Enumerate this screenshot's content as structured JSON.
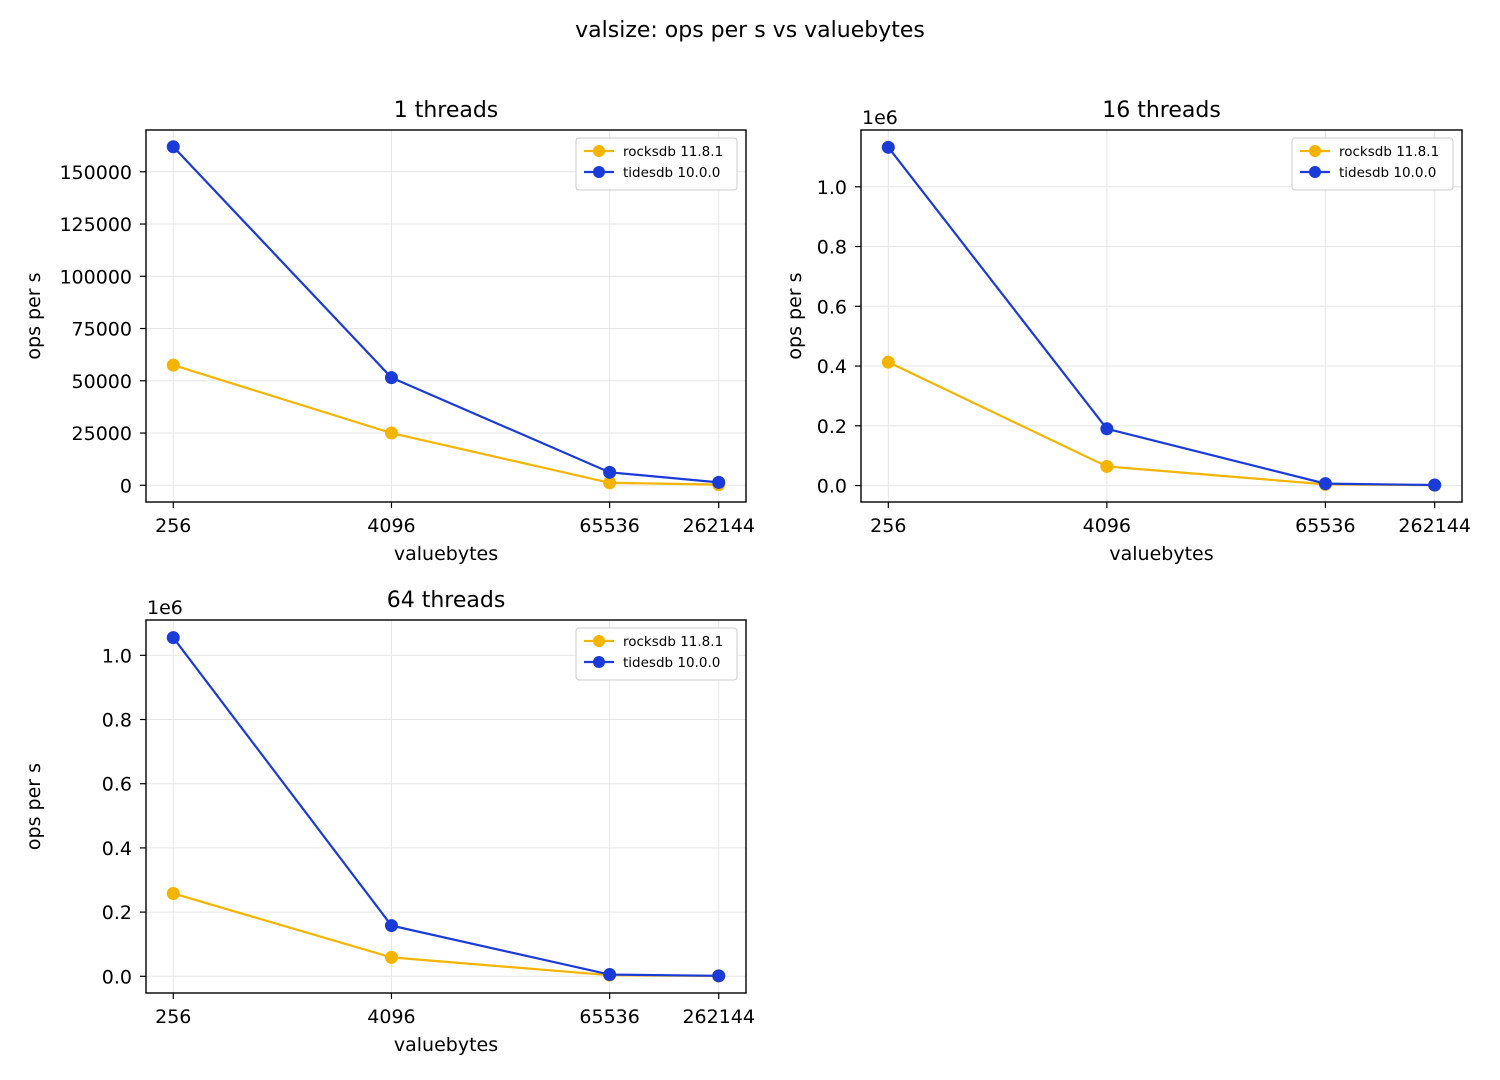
{
  "figure": {
    "suptitle": "valsize: ops per s vs valuebytes"
  },
  "chart_data": [
    {
      "type": "line",
      "title": "1 threads",
      "xlabel": "valuebytes",
      "ylabel": "ops per s",
      "x_scale": "log2",
      "x": [
        256,
        4096,
        65536,
        262144
      ],
      "x_tick_labels": [
        "256",
        "4096",
        "65536",
        "262144"
      ],
      "y_ticks": [
        0,
        25000,
        50000,
        75000,
        100000,
        125000,
        150000
      ],
      "y_tick_labels": [
        "0",
        "25000",
        "50000",
        "75000",
        "100000",
        "125000",
        "150000"
      ],
      "y_offset_label": "",
      "ylim": [
        -8000,
        170000
      ],
      "grid": true,
      "legend_position": "top-right",
      "series": [
        {
          "name": "rocksdb 11.8.1",
          "color": "#f5b400",
          "values": [
            57500,
            25000,
            1200,
            300
          ]
        },
        {
          "name": "tidesdb 10.0.0",
          "color": "#1a3bd8",
          "values": [
            162000,
            51500,
            6200,
            1400
          ]
        }
      ]
    },
    {
      "type": "line",
      "title": "16 threads",
      "xlabel": "valuebytes",
      "ylabel": "ops per s",
      "x_scale": "log2",
      "x": [
        256,
        4096,
        65536,
        262144
      ],
      "x_tick_labels": [
        "256",
        "4096",
        "65536",
        "262144"
      ],
      "y_ticks": [
        0,
        200000,
        400000,
        600000,
        800000,
        1000000
      ],
      "y_tick_labels": [
        "0.0",
        "0.2",
        "0.4",
        "0.6",
        "0.8",
        "1.0"
      ],
      "y_offset_label": "1e6",
      "ylim": [
        -55000,
        1190000
      ],
      "grid": true,
      "legend_position": "top-right",
      "series": [
        {
          "name": "rocksdb 11.8.1",
          "color": "#f5b400",
          "values": [
            413000,
            64000,
            4000,
            1200
          ]
        },
        {
          "name": "tidesdb 10.0.0",
          "color": "#1a3bd8",
          "values": [
            1132000,
            190000,
            6500,
            1800
          ]
        }
      ]
    },
    {
      "type": "line",
      "title": "64 threads",
      "xlabel": "valuebytes",
      "ylabel": "ops per s",
      "x_scale": "log2",
      "x": [
        256,
        4096,
        65536,
        262144
      ],
      "x_tick_labels": [
        "256",
        "4096",
        "65536",
        "262144"
      ],
      "y_ticks": [
        0,
        200000,
        400000,
        600000,
        800000,
        1000000
      ],
      "y_tick_labels": [
        "0.0",
        "0.2",
        "0.4",
        "0.6",
        "0.8",
        "1.0"
      ],
      "y_offset_label": "1e6",
      "ylim": [
        -52000,
        1110000
      ],
      "grid": true,
      "legend_position": "top-right",
      "series": [
        {
          "name": "rocksdb 11.8.1",
          "color": "#f5b400",
          "values": [
            258000,
            59000,
            3500,
            1000
          ]
        },
        {
          "name": "tidesdb 10.0.0",
          "color": "#1a3bd8",
          "values": [
            1055000,
            158000,
            5500,
            1500
          ]
        }
      ]
    }
  ]
}
